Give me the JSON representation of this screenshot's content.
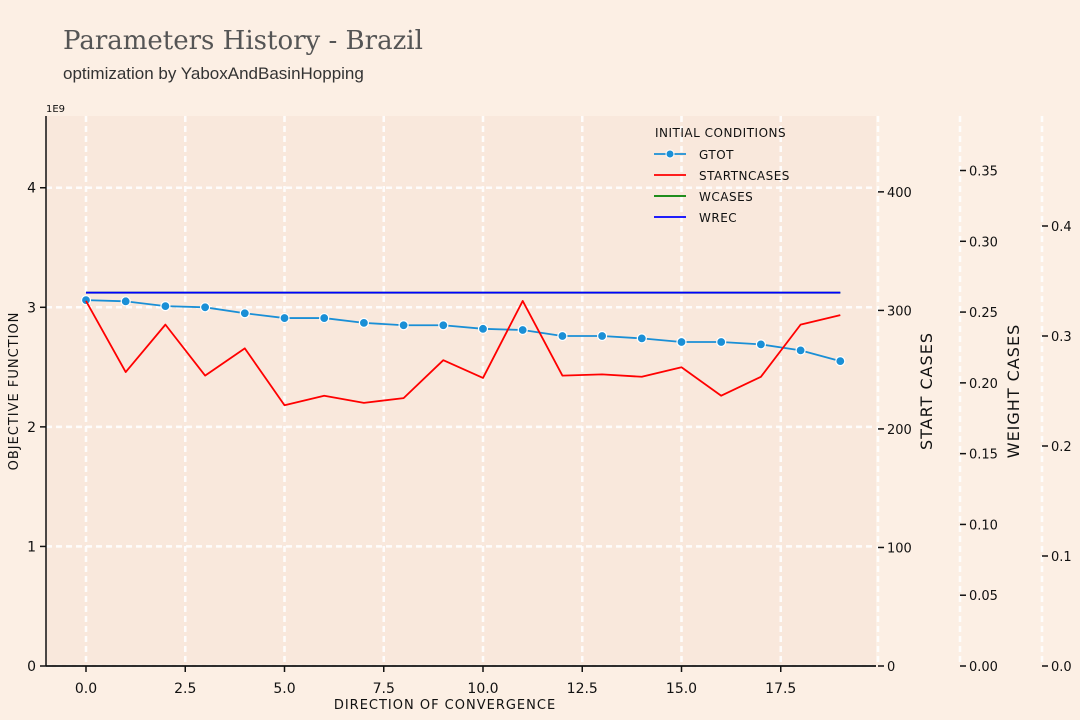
{
  "header": {
    "title": "Parameters History - Brazil",
    "subtitle": "optimization by YaboxAndBasinHopping"
  },
  "chart_data": {
    "type": "line",
    "x": [
      0,
      1,
      2,
      3,
      4,
      5,
      6,
      7,
      8,
      9,
      10,
      11,
      12,
      13,
      14,
      15,
      16,
      17,
      18,
      19
    ],
    "xlabel": "DIRECTION OF CONVERGENCE",
    "xticks": [
      "0.0",
      "2.5",
      "5.0",
      "7.5",
      "10.0",
      "12.5",
      "15.0",
      "17.5"
    ],
    "xlim": [
      -1,
      20
    ],
    "axes": [
      {
        "id": "objective",
        "label": "OBJECTIVE FUNCTION",
        "offset_label": "1E9",
        "ylim": [
          0,
          4.6
        ],
        "ticks": [
          "0",
          "1",
          "2",
          "3",
          "4"
        ]
      },
      {
        "id": "start",
        "label": "START CASES",
        "ylim": [
          0,
          464
        ],
        "ticks": [
          "0",
          "100",
          "200",
          "300",
          "400"
        ]
      },
      {
        "id": "weight",
        "label": "WEIGHT CASES",
        "ylim": [
          0,
          0.3885
        ],
        "ticks": [
          "0.00",
          "0.05",
          "0.10",
          "0.15",
          "0.20",
          "0.25",
          "0.30",
          "0.35"
        ]
      },
      {
        "id": "fourth",
        "label": "",
        "ylim": [
          0,
          0.5
        ],
        "ticks": [
          "0.0",
          "0.1",
          "0.2",
          "0.3",
          "0.4"
        ]
      }
    ],
    "legend": {
      "title": "INITIAL CONDITIONS",
      "placement": "top-right"
    },
    "series": [
      {
        "name": "GTOT",
        "axis": "objective",
        "color": "#1a8fd6",
        "marker": true,
        "values": [
          3.06,
          3.05,
          3.01,
          3.0,
          2.95,
          2.91,
          2.91,
          2.87,
          2.85,
          2.85,
          2.82,
          2.81,
          2.76,
          2.76,
          2.74,
          2.71,
          2.71,
          2.69,
          2.64,
          2.55
        ]
      },
      {
        "name": "STARTNCASES",
        "axis": "start",
        "color": "#ff0000",
        "marker": false,
        "values": [
          308,
          248,
          288,
          245,
          268,
          220,
          228,
          222,
          226,
          258,
          243,
          308,
          245,
          246,
          244,
          252,
          228,
          244,
          288,
          296
        ]
      },
      {
        "name": "WCASES",
        "axis": "weight",
        "color": "#008000",
        "marker": false,
        "values": [
          0.2637,
          0.2637,
          0.2637,
          0.2637,
          0.2637,
          0.2637,
          0.2637,
          0.2637,
          0.2637,
          0.2637,
          0.2637,
          0.2637,
          0.2637,
          0.2637,
          0.2637,
          0.2637,
          0.2637,
          0.2637,
          0.2637,
          0.2637
        ]
      },
      {
        "name": "WREC",
        "axis": "fourth",
        "color": "#0000ff",
        "marker": false,
        "values": [
          0.3394,
          0.3394,
          0.3394,
          0.3394,
          0.3394,
          0.3394,
          0.3394,
          0.3394,
          0.3394,
          0.3394,
          0.3394,
          0.3394,
          0.3394,
          0.3394,
          0.3394,
          0.3394,
          0.3394,
          0.3394,
          0.3394,
          0.3394
        ]
      }
    ]
  }
}
